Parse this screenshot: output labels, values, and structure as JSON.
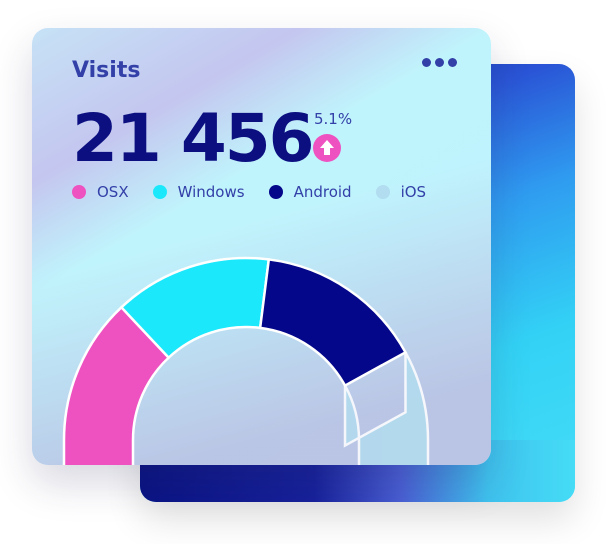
{
  "card": {
    "title": "Visits",
    "more_icon": "more-horizontal-icon",
    "total": "21 456",
    "change": "5.1%",
    "change_icon": "arrow-up-circle-icon",
    "change_color": "#ee52c0"
  },
  "chart_data": {
    "type": "pie",
    "variant": "half-donut",
    "categories": [
      "OSX",
      "Windows",
      "Android",
      "iOS"
    ],
    "values": [
      26,
      28,
      30,
      16
    ],
    "colors": [
      "#ee52c0",
      "#1be8fb",
      "#04078a",
      "#b2dcef"
    ],
    "legend": "top"
  }
}
